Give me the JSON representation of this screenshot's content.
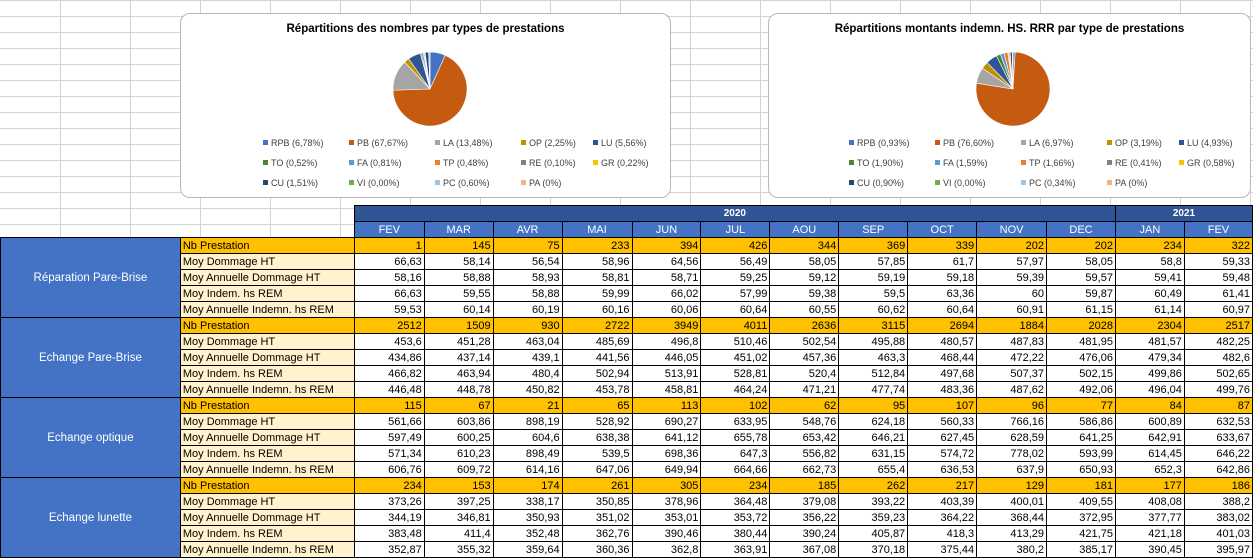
{
  "charts": [
    {
      "title": "Répartitions des nombres par types de prestations",
      "slices": [
        {
          "name": "RPB",
          "label": "RPB (6,78%)",
          "value": 6.78,
          "color": "#4472c4"
        },
        {
          "name": "PB",
          "label": "PB (67,67%)",
          "value": 67.67,
          "color": "#c55a11"
        },
        {
          "name": "LA",
          "label": "LA (13,48%)",
          "value": 13.48,
          "color": "#a5a5a5"
        },
        {
          "name": "OP",
          "label": "OP (2,25%)",
          "value": 2.25,
          "color": "#bf9000"
        },
        {
          "name": "LU",
          "label": "LU (5,56%)",
          "value": 5.56,
          "color": "#2f5597"
        },
        {
          "name": "TO",
          "label": "TO (0,52%)",
          "value": 0.52,
          "color": "#548235"
        },
        {
          "name": "FA",
          "label": "FA (0,81%)",
          "value": 0.81,
          "color": "#5b9bd5"
        },
        {
          "name": "TP",
          "label": "TP (0,48%)",
          "value": 0.48,
          "color": "#ed7d31"
        },
        {
          "name": "RE",
          "label": "RE (0,10%)",
          "value": 0.1,
          "color": "#7f7f7f"
        },
        {
          "name": "GR",
          "label": "GR (0,22%)",
          "value": 0.22,
          "color": "#ffc000"
        },
        {
          "name": "CU",
          "label": "CU (1,51%)",
          "value": 1.51,
          "color": "#264478"
        },
        {
          "name": "VI",
          "label": "VI (0,00%)",
          "value": 0.0,
          "color": "#70ad47"
        },
        {
          "name": "PC",
          "label": "PC (0,60%)",
          "value": 0.6,
          "color": "#9dc3e6"
        },
        {
          "name": "PA",
          "label": "PA (0%)",
          "value": 0.0,
          "color": "#f4b183"
        }
      ]
    },
    {
      "title": "Répartitions montants indemn. HS. RRR par type de prestations",
      "slices": [
        {
          "name": "RPB",
          "label": "RPB (0,93%)",
          "value": 0.93,
          "color": "#4472c4"
        },
        {
          "name": "PB",
          "label": "PB (76,60%)",
          "value": 76.6,
          "color": "#c55a11"
        },
        {
          "name": "LA",
          "label": "LA (6,97%)",
          "value": 6.97,
          "color": "#a5a5a5"
        },
        {
          "name": "OP",
          "label": "OP (3,19%)",
          "value": 3.19,
          "color": "#bf9000"
        },
        {
          "name": "LU",
          "label": "LU (4,93%)",
          "value": 4.93,
          "color": "#2f5597"
        },
        {
          "name": "TO",
          "label": "TO (1,90%)",
          "value": 1.9,
          "color": "#548235"
        },
        {
          "name": "FA",
          "label": "FA (1,59%)",
          "value": 1.59,
          "color": "#5b9bd5"
        },
        {
          "name": "TP",
          "label": "TP (1,66%)",
          "value": 1.66,
          "color": "#ed7d31"
        },
        {
          "name": "RE",
          "label": "RE (0,41%)",
          "value": 0.41,
          "color": "#7f7f7f"
        },
        {
          "name": "GR",
          "label": "GR (0,58%)",
          "value": 0.58,
          "color": "#ffc000"
        },
        {
          "name": "CU",
          "label": "CU (0,90%)",
          "value": 0.9,
          "color": "#264478"
        },
        {
          "name": "VI",
          "label": "VI (0,00%)",
          "value": 0.0,
          "color": "#70ad47"
        },
        {
          "name": "PC",
          "label": "PC (0,34%)",
          "value": 0.34,
          "color": "#9dc3e6"
        },
        {
          "name": "PA",
          "label": "PA (0%)",
          "value": 0.0,
          "color": "#f4b183"
        }
      ]
    }
  ],
  "chart_data": [
    {
      "type": "pie",
      "title": "Répartitions des nombres par types de prestations",
      "categories": [
        "RPB",
        "PB",
        "LA",
        "OP",
        "LU",
        "TO",
        "FA",
        "TP",
        "RE",
        "GR",
        "CU",
        "VI",
        "PC",
        "PA"
      ],
      "values": [
        6.78,
        67.67,
        13.48,
        2.25,
        5.56,
        0.52,
        0.81,
        0.48,
        0.1,
        0.22,
        1.51,
        0.0,
        0.6,
        0.0
      ],
      "legend": "bottom"
    },
    {
      "type": "pie",
      "title": "Répartitions montants indemn. HS. RRR par type de prestations",
      "categories": [
        "RPB",
        "PB",
        "LA",
        "OP",
        "LU",
        "TO",
        "FA",
        "TP",
        "RE",
        "GR",
        "CU",
        "VI",
        "PC",
        "PA"
      ],
      "values": [
        0.93,
        76.6,
        6.97,
        3.19,
        4.93,
        1.9,
        1.59,
        1.66,
        0.41,
        0.58,
        0.9,
        0.0,
        0.34,
        0.0
      ],
      "legend": "bottom"
    }
  ],
  "table": {
    "years": [
      {
        "label": "2020",
        "span": 11
      },
      {
        "label": "2021",
        "span": 2
      }
    ],
    "months": [
      "FEV",
      "MAR",
      "AVR",
      "MAI",
      "JUN",
      "JUL",
      "AOU",
      "SEP",
      "OCT",
      "NOV",
      "DEC",
      "JAN",
      "FEV"
    ],
    "groups": [
      {
        "name": "Réparation Pare-Brise",
        "rows": [
          {
            "label": "Nb Prestation",
            "nb": true,
            "values": [
              "1",
              "145",
              "75",
              "233",
              "394",
              "426",
              "344",
              "369",
              "339",
              "202",
              "202",
              "234",
              "322"
            ]
          },
          {
            "label": "Moy Dommage HT",
            "values": [
              "66,63",
              "58,14",
              "56,54",
              "58,96",
              "64,56",
              "56,49",
              "58,05",
              "57,85",
              "61,7",
              "57,97",
              "58,05",
              "58,8",
              "59,33"
            ]
          },
          {
            "label": "Moy Annuelle Dommage HT",
            "values": [
              "58,16",
              "58,88",
              "58,93",
              "58,81",
              "58,71",
              "59,25",
              "59,12",
              "59,19",
              "59,18",
              "59,39",
              "59,57",
              "59,41",
              "59,48"
            ]
          },
          {
            "label": "Moy Indem. hs REM",
            "values": [
              "66,63",
              "59,55",
              "58,88",
              "59,99",
              "66,02",
              "57,99",
              "59,38",
              "59,5",
              "63,36",
              "60",
              "59,87",
              "60,49",
              "61,41"
            ]
          },
          {
            "label": "Moy Annuelle Indemn. hs REM",
            "values": [
              "59,53",
              "60,14",
              "60,19",
              "60,16",
              "60,06",
              "60,64",
              "60,55",
              "60,62",
              "60,64",
              "60,91",
              "61,15",
              "61,14",
              "60,97"
            ]
          }
        ]
      },
      {
        "name": "Echange Pare-Brise",
        "rows": [
          {
            "label": "Nb Prestation",
            "nb": true,
            "values": [
              "2512",
              "1509",
              "930",
              "2722",
              "3949",
              "4011",
              "2636",
              "3115",
              "2694",
              "1884",
              "2028",
              "2304",
              "2517"
            ]
          },
          {
            "label": "Moy Dommage HT",
            "values": [
              "453,6",
              "451,28",
              "463,04",
              "485,69",
              "496,8",
              "510,46",
              "502,54",
              "495,88",
              "480,57",
              "487,83",
              "481,95",
              "481,57",
              "482,25"
            ]
          },
          {
            "label": "Moy Annuelle Dommage HT",
            "values": [
              "434,86",
              "437,14",
              "439,1",
              "441,56",
              "446,05",
              "451,02",
              "457,36",
              "463,3",
              "468,44",
              "472,22",
              "476,06",
              "479,34",
              "482,6"
            ]
          },
          {
            "label": "Moy Indem. hs REM",
            "values": [
              "466,82",
              "463,94",
              "480,4",
              "502,94",
              "513,91",
              "528,81",
              "520,4",
              "512,84",
              "497,68",
              "507,37",
              "502,15",
              "499,86",
              "502,65"
            ]
          },
          {
            "label": "Moy Annuelle Indemn. hs REM",
            "values": [
              "446,48",
              "448,78",
              "450,82",
              "453,78",
              "458,81",
              "464,24",
              "471,21",
              "477,74",
              "483,36",
              "487,62",
              "492,06",
              "496,04",
              "499,76"
            ]
          }
        ]
      },
      {
        "name": "Echange optique",
        "rows": [
          {
            "label": "Nb Prestation",
            "nb": true,
            "values": [
              "115",
              "67",
              "21",
              "65",
              "113",
              "102",
              "62",
              "95",
              "107",
              "96",
              "77",
              "84",
              "87"
            ]
          },
          {
            "label": "Moy Dommage HT",
            "values": [
              "561,66",
              "603,86",
              "898,19",
              "528,92",
              "690,27",
              "633,95",
              "548,76",
              "624,18",
              "560,33",
              "766,16",
              "586,86",
              "600,89",
              "632,53"
            ]
          },
          {
            "label": "Moy Annuelle Dommage HT",
            "values": [
              "597,49",
              "600,25",
              "604,6",
              "638,38",
              "641,12",
              "655,78",
              "653,42",
              "646,21",
              "627,45",
              "628,59",
              "641,25",
              "642,91",
              "633,67"
            ]
          },
          {
            "label": "Moy Indem. hs REM",
            "values": [
              "571,34",
              "610,23",
              "898,49",
              "539,5",
              "698,36",
              "647,3",
              "556,82",
              "631,15",
              "574,72",
              "778,02",
              "593,99",
              "614,45",
              "646,22"
            ]
          },
          {
            "label": "Moy Annuelle Indemn. hs REM",
            "values": [
              "606,76",
              "609,72",
              "614,16",
              "647,06",
              "649,94",
              "664,66",
              "662,73",
              "655,4",
              "636,53",
              "637,9",
              "650,93",
              "652,3",
              "642,86"
            ]
          }
        ]
      },
      {
        "name": "Echange lunette",
        "rows": [
          {
            "label": "Nb Prestation",
            "nb": true,
            "values": [
              "234",
              "153",
              "174",
              "261",
              "305",
              "234",
              "185",
              "262",
              "217",
              "129",
              "181",
              "177",
              "186"
            ]
          },
          {
            "label": "Moy Dommage HT",
            "values": [
              "373,26",
              "397,25",
              "338,17",
              "350,85",
              "378,96",
              "364,48",
              "379,08",
              "393,22",
              "403,39",
              "400,01",
              "409,55",
              "408,08",
              "388,2"
            ]
          },
          {
            "label": "Moy Annuelle Dommage HT",
            "values": [
              "344,19",
              "346,81",
              "350,93",
              "351,02",
              "353,01",
              "353,72",
              "356,22",
              "359,23",
              "364,22",
              "368,44",
              "372,95",
              "377,77",
              "383,02"
            ]
          },
          {
            "label": "Moy Indem. hs REM",
            "values": [
              "383,48",
              "411,4",
              "352,48",
              "362,76",
              "390,46",
              "380,44",
              "390,24",
              "405,87",
              "418,3",
              "413,29",
              "421,75",
              "421,18",
              "401,03"
            ]
          },
          {
            "label": "Moy Annuelle Indemn. hs REM",
            "values": [
              "352,87",
              "355,32",
              "359,64",
              "360,36",
              "362,8",
              "363,91",
              "367,08",
              "370,18",
              "375,44",
              "380,2",
              "385,17",
              "390,45",
              "395,97"
            ]
          }
        ]
      }
    ]
  }
}
